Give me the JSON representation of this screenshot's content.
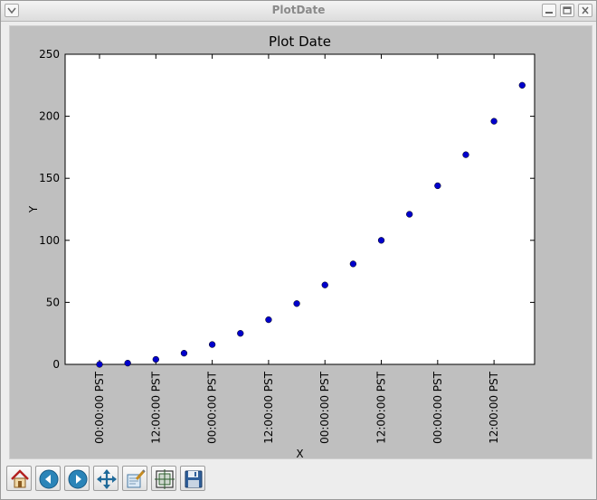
{
  "window": {
    "title": "PlotDate",
    "icons": {
      "menu": "chevron-down-icon",
      "minimize": "minimize-icon",
      "maximize": "maximize-icon",
      "close": "close-icon"
    }
  },
  "toolbar": {
    "buttons": [
      {
        "name": "home",
        "icon": "home-icon"
      },
      {
        "name": "back",
        "icon": "back-arrow-icon"
      },
      {
        "name": "forward",
        "icon": "forward-arrow-icon"
      },
      {
        "name": "pan",
        "icon": "move-icon"
      },
      {
        "name": "zoom-to-rect",
        "icon": "zoom-rect-icon"
      },
      {
        "name": "configure-subplots",
        "icon": "subplots-icon"
      },
      {
        "name": "save",
        "icon": "floppy-disk-icon"
      }
    ]
  },
  "chart_data": {
    "type": "scatter",
    "title": "Plot Date",
    "xlabel": "X",
    "ylabel": "Y",
    "ylim": [
      0,
      250
    ],
    "yticks": [
      "0",
      "50",
      "100",
      "150",
      "200",
      "250"
    ],
    "xticks": [
      "00:00:00 PST",
      "12:00:00 PST",
      "00:00:00 PST",
      "12:00:00 PST",
      "00:00:00 PST",
      "12:00:00 PST",
      "00:00:00 PST",
      "12:00:00 PST"
    ],
    "x_step_hours": 6,
    "x": [
      0,
      1,
      2,
      3,
      4,
      5,
      6,
      7,
      8,
      9,
      10,
      11,
      12,
      13,
      14,
      15
    ],
    "y": [
      0,
      1,
      4,
      9,
      16,
      25,
      36,
      49,
      64,
      81,
      100,
      121,
      144,
      169,
      196,
      225
    ],
    "marker_color": "#0000cc",
    "grid": false
  },
  "colors": {
    "frame_bg": "#bfbfbf",
    "axes_bg": "#ffffff",
    "marker": "#0000cc"
  }
}
